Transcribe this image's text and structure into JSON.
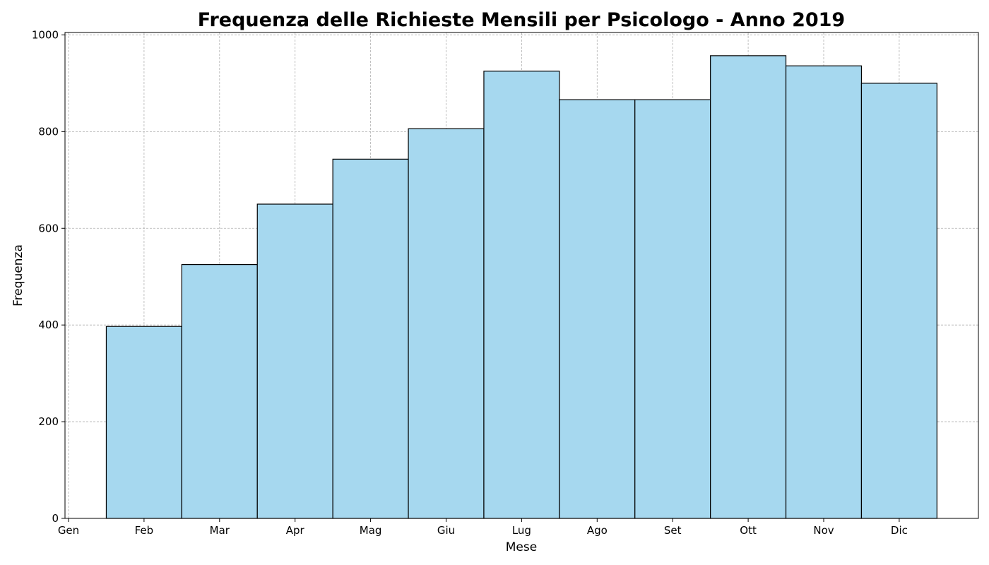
{
  "chart_data": {
    "type": "bar",
    "title": "Frequenza delle Richieste Mensili per Psicologo - Anno 2019",
    "xlabel": "Mese",
    "ylabel": "Frequenza",
    "x_ticks": [
      "Gen",
      "Feb",
      "Mar",
      "Apr",
      "Mag",
      "Giu",
      "Lug",
      "Ago",
      "Set",
      "Ott",
      "Nov",
      "Dic"
    ],
    "categories": [
      "Feb",
      "Mar",
      "Apr",
      "Mag",
      "Giu",
      "Lug",
      "Ago",
      "Set",
      "Ott",
      "Nov",
      "Dic"
    ],
    "values": [
      397,
      525,
      650,
      743,
      806,
      925,
      866,
      866,
      957,
      936,
      900
    ],
    "y_ticks": [
      0,
      200,
      400,
      600,
      800,
      1000
    ],
    "ylim": [
      0,
      1005
    ],
    "grid": true,
    "bar_color": "#a6d8ef",
    "bar_edge_color": "#000000"
  }
}
